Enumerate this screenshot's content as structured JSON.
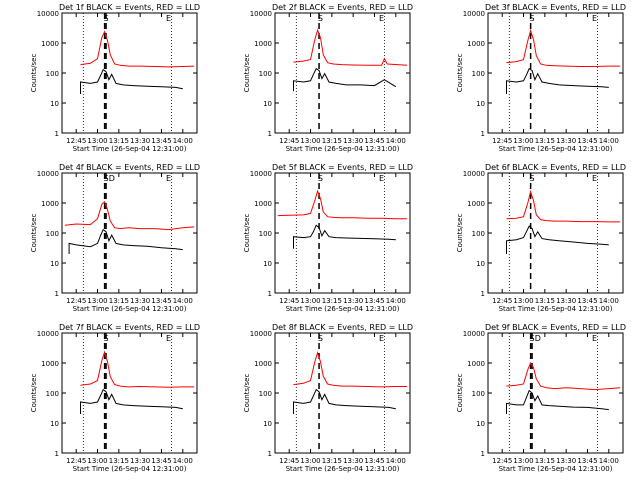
{
  "figure": {
    "common": {
      "ylabel": "Counts/sec",
      "xlabel": "Start Time (26-Sep-04 12:31:00)",
      "title_suffix": "BLACK = Events, RED = LLD"
    }
  },
  "colors": {
    "events": "#000000",
    "lld": "#ff0000",
    "axes": "#000000"
  },
  "chart_data": [
    {
      "type": "line",
      "title": "Det 1f BLACK = Events, RED = LLD",
      "xlabel": "Start Time (26-Sep-04 12:31:00)",
      "ylabel": "Counts/sec",
      "yscale": "log",
      "ylim": [
        1,
        10000
      ],
      "xlim": [
        "12:35",
        "14:10"
      ],
      "xticks": [
        "12:45",
        "13:00",
        "13:15",
        "13:30",
        "13:45",
        "14:00"
      ],
      "yticks": [
        "1",
        "10",
        "100",
        "1000",
        "10000"
      ],
      "dotted_lines_x": [
        "12:50",
        "13:52"
      ],
      "dashed_lines_x": [
        "13:05",
        "13:06"
      ],
      "markers": [
        "S",
        "E"
      ],
      "series": [
        {
          "key": "lld",
          "x": [
            "12:48",
            "12:55",
            "13:00",
            "13:03",
            "13:05",
            "13:07",
            "13:09",
            "13:12",
            "13:16",
            "13:22",
            "13:30",
            "13:40",
            "13:50",
            "14:00",
            "14:08"
          ],
          "y": [
            190,
            210,
            300,
            1500,
            2400,
            1200,
            400,
            200,
            180,
            170,
            170,
            165,
            160,
            165,
            170
          ]
        },
        {
          "key": "events",
          "x": [
            "12:48",
            "12:48",
            "12:55",
            "13:00",
            "13:02",
            "13:04",
            "13:06",
            "13:08",
            "13:10",
            "13:13",
            "13:18",
            "13:25",
            "13:35",
            "13:45",
            "13:55",
            "14:00"
          ],
          "y": [
            20,
            50,
            45,
            50,
            80,
            130,
            110,
            60,
            90,
            45,
            40,
            38,
            36,
            35,
            33,
            30
          ]
        }
      ]
    },
    {
      "type": "line",
      "title": "Det 2f BLACK = Events, RED = LLD",
      "xlabel": "Start Time (26-Sep-04 12:31:00)",
      "ylabel": "Counts/sec",
      "yscale": "log",
      "ylim": [
        1,
        10000
      ],
      "xlim": [
        "12:35",
        "14:10"
      ],
      "xticks": [
        "12:45",
        "13:00",
        "13:15",
        "13:30",
        "13:45",
        "14:00"
      ],
      "yticks": [
        "1",
        "10",
        "100",
        "1000",
        "10000"
      ],
      "dotted_lines_x": [
        "12:50",
        "13:52"
      ],
      "dashed_lines_x": [
        "13:06"
      ],
      "markers": [
        "S",
        "E"
      ],
      "series": [
        {
          "key": "lld",
          "x": [
            "12:48",
            "12:55",
            "13:00",
            "13:03",
            "13:05",
            "13:07",
            "13:09",
            "13:12",
            "13:16",
            "13:22",
            "13:30",
            "13:40",
            "13:50",
            "13:52",
            "13:54",
            "14:08"
          ],
          "y": [
            230,
            250,
            280,
            1300,
            2700,
            1500,
            400,
            220,
            200,
            190,
            185,
            180,
            180,
            300,
            200,
            180
          ]
        },
        {
          "key": "events",
          "x": [
            "12:48",
            "12:48",
            "12:55",
            "13:00",
            "13:02",
            "13:04",
            "13:06",
            "13:08",
            "13:10",
            "13:13",
            "13:18",
            "13:25",
            "13:35",
            "13:45",
            "13:52",
            "14:00"
          ],
          "y": [
            25,
            55,
            50,
            55,
            90,
            140,
            120,
            65,
            95,
            50,
            45,
            40,
            40,
            38,
            60,
            35
          ]
        }
      ]
    },
    {
      "type": "line",
      "title": "Det 3f BLACK = Events, RED = LLD",
      "xlabel": "Start Time (26-Sep-04 12:31:00)",
      "ylabel": "Counts/sec",
      "yscale": "log",
      "ylim": [
        1,
        10000
      ],
      "xlim": [
        "12:35",
        "14:10"
      ],
      "xticks": [
        "12:45",
        "13:00",
        "13:15",
        "13:30",
        "13:45",
        "14:00"
      ],
      "yticks": [
        "1",
        "10",
        "100",
        "1000",
        "10000"
      ],
      "dotted_lines_x": [
        "12:50",
        "13:52"
      ],
      "dashed_lines_x": [
        "13:05"
      ],
      "markers": [
        "S",
        "E"
      ],
      "series": [
        {
          "key": "lld",
          "x": [
            "12:48",
            "12:55",
            "13:00",
            "13:03",
            "13:05",
            "13:07",
            "13:09",
            "13:12",
            "13:16",
            "13:22",
            "13:30",
            "13:40",
            "13:50",
            "14:00",
            "14:08"
          ],
          "y": [
            220,
            240,
            280,
            1200,
            2600,
            1300,
            380,
            200,
            180,
            175,
            170,
            165,
            165,
            170,
            170
          ]
        },
        {
          "key": "events",
          "x": [
            "12:48",
            "12:48",
            "12:55",
            "13:00",
            "13:02",
            "13:04",
            "13:06",
            "13:08",
            "13:10",
            "13:13",
            "13:18",
            "13:25",
            "13:35",
            "13:45",
            "13:55",
            "14:00"
          ],
          "y": [
            20,
            55,
            50,
            55,
            85,
            140,
            120,
            60,
            95,
            50,
            45,
            40,
            38,
            36,
            35,
            33
          ]
        }
      ]
    },
    {
      "type": "line",
      "title": "Det 4f BLACK = Events, RED = LLD",
      "xlabel": "Start Time (26-Sep-04 12:31:00)",
      "ylabel": "Counts/sec",
      "yscale": "log",
      "ylim": [
        1,
        10000
      ],
      "xlim": [
        "12:35",
        "14:10"
      ],
      "xticks": [
        "12:45",
        "13:00",
        "13:15",
        "13:30",
        "13:45",
        "14:00"
      ],
      "yticks": [
        "1",
        "10",
        "100",
        "1000",
        "10000"
      ],
      "dotted_lines_x": [
        "12:50",
        "13:52"
      ],
      "dashed_lines_x": [
        "13:05",
        "13:06"
      ],
      "markers": [
        "S",
        "E",
        "D"
      ],
      "series": [
        {
          "key": "lld",
          "x": [
            "12:37",
            "12:45",
            "12:55",
            "13:00",
            "13:03",
            "13:05",
            "13:07",
            "13:09",
            "13:12",
            "13:16",
            "13:22",
            "13:30",
            "13:40",
            "13:50",
            "14:00",
            "14:08"
          ],
          "y": [
            180,
            200,
            190,
            300,
            900,
            1100,
            600,
            250,
            150,
            140,
            150,
            140,
            140,
            130,
            150,
            160
          ]
        },
        {
          "key": "events",
          "x": [
            "12:40",
            "12:40",
            "12:45",
            "12:55",
            "13:00",
            "13:02",
            "13:04",
            "13:06",
            "13:08",
            "13:10",
            "13:13",
            "13:18",
            "13:25",
            "13:35",
            "13:45",
            "13:55",
            "14:00"
          ],
          "y": [
            20,
            45,
            40,
            35,
            45,
            80,
            130,
            110,
            55,
            85,
            45,
            40,
            38,
            36,
            32,
            30,
            28
          ]
        }
      ]
    },
    {
      "type": "line",
      "title": "Det 5f BLACK = Events, RED = LLD",
      "xlabel": "Start Time (26-Sep-04 12:31:00)",
      "ylabel": "Counts/sec",
      "yscale": "log",
      "ylim": [
        1,
        10000
      ],
      "xlim": [
        "12:35",
        "14:10"
      ],
      "xticks": [
        "12:45",
        "13:00",
        "13:15",
        "13:30",
        "13:45",
        "14:00"
      ],
      "yticks": [
        "1",
        "10",
        "100",
        "1000",
        "10000"
      ],
      "dotted_lines_x": [
        "12:50",
        "13:52"
      ],
      "dashed_lines_x": [
        "13:06"
      ],
      "markers": [
        "S",
        "E"
      ],
      "series": [
        {
          "key": "lld",
          "x": [
            "12:37",
            "12:45",
            "12:55",
            "13:00",
            "13:03",
            "13:05",
            "13:07",
            "13:09",
            "13:12",
            "13:16",
            "13:22",
            "13:30",
            "13:40",
            "13:50",
            "14:00",
            "14:08"
          ],
          "y": [
            380,
            390,
            400,
            450,
            1200,
            2500,
            1400,
            500,
            350,
            330,
            320,
            320,
            310,
            310,
            300,
            300
          ]
        },
        {
          "key": "events",
          "x": [
            "12:48",
            "12:48",
            "12:55",
            "13:00",
            "13:02",
            "13:04",
            "13:06",
            "13:08",
            "13:10",
            "13:13",
            "13:18",
            "13:25",
            "13:35",
            "13:45",
            "13:55",
            "14:00"
          ],
          "y": [
            30,
            75,
            70,
            75,
            110,
            180,
            150,
            80,
            120,
            75,
            70,
            68,
            66,
            64,
            62,
            60
          ]
        }
      ]
    },
    {
      "type": "line",
      "title": "Det 6f BLACK = Events, RED = LLD",
      "xlabel": "Start Time (26-Sep-04 12:31:00)",
      "ylabel": "Counts/sec",
      "yscale": "log",
      "ylim": [
        1,
        10000
      ],
      "xlim": [
        "12:35",
        "14:10"
      ],
      "xticks": [
        "12:45",
        "13:00",
        "13:15",
        "13:30",
        "13:45",
        "14:00"
      ],
      "yticks": [
        "1",
        "10",
        "100",
        "1000",
        "10000"
      ],
      "dotted_lines_x": [
        "12:50",
        "13:52"
      ],
      "dashed_lines_x": [
        "13:05"
      ],
      "markers": [
        "S",
        "E"
      ],
      "series": [
        {
          "key": "lld",
          "x": [
            "12:48",
            "12:55",
            "13:00",
            "13:03",
            "13:05",
            "13:07",
            "13:09",
            "13:12",
            "13:16",
            "13:22",
            "13:30",
            "13:40",
            "13:50",
            "14:00",
            "14:08"
          ],
          "y": [
            300,
            310,
            350,
            1000,
            2400,
            1200,
            400,
            280,
            260,
            250,
            250,
            240,
            240,
            235,
            235
          ]
        },
        {
          "key": "events",
          "x": [
            "12:48",
            "12:48",
            "12:55",
            "13:00",
            "13:02",
            "13:04",
            "13:06",
            "13:08",
            "13:10",
            "13:13",
            "13:18",
            "13:25",
            "13:35",
            "13:45",
            "13:55",
            "14:00"
          ],
          "y": [
            20,
            55,
            60,
            70,
            110,
            170,
            140,
            75,
            110,
            65,
            60,
            55,
            50,
            45,
            42,
            40
          ]
        }
      ]
    },
    {
      "type": "line",
      "title": "Det 7f BLACK = Events, RED = LLD",
      "xlabel": "Start Time (26-Sep-04 12:31:00)",
      "ylabel": "Counts/sec",
      "yscale": "log",
      "ylim": [
        1,
        10000
      ],
      "xlim": [
        "12:35",
        "14:10"
      ],
      "xticks": [
        "12:45",
        "13:00",
        "13:15",
        "13:30",
        "13:45",
        "14:00"
      ],
      "yticks": [
        "1",
        "10",
        "100",
        "1000",
        "10000"
      ],
      "dotted_lines_x": [
        "12:50",
        "13:52"
      ],
      "dashed_lines_x": [
        "13:05",
        "13:06"
      ],
      "markers": [
        "S",
        "E"
      ],
      "series": [
        {
          "key": "lld",
          "x": [
            "12:48",
            "12:55",
            "13:00",
            "13:03",
            "13:05",
            "13:07",
            "13:09",
            "13:12",
            "13:16",
            "13:22",
            "13:30",
            "13:40",
            "13:50",
            "14:00",
            "14:08"
          ],
          "y": [
            180,
            200,
            260,
            1200,
            2300,
            1100,
            350,
            190,
            170,
            160,
            165,
            160,
            155,
            160,
            160
          ]
        },
        {
          "key": "events",
          "x": [
            "12:48",
            "12:48",
            "12:55",
            "13:00",
            "13:02",
            "13:04",
            "13:06",
            "13:08",
            "13:10",
            "13:13",
            "13:18",
            "13:25",
            "13:35",
            "13:45",
            "13:55",
            "14:00"
          ],
          "y": [
            20,
            50,
            45,
            50,
            80,
            130,
            110,
            60,
            90,
            45,
            40,
            38,
            36,
            35,
            33,
            30
          ]
        }
      ]
    },
    {
      "type": "line",
      "title": "Det 8f BLACK = Events, RED = LLD",
      "xlabel": "Start Time (26-Sep-04 12:31:00)",
      "ylabel": "Counts/sec",
      "yscale": "log",
      "ylim": [
        1,
        10000
      ],
      "xlim": [
        "12:35",
        "14:10"
      ],
      "xticks": [
        "12:45",
        "13:00",
        "13:15",
        "13:30",
        "13:45",
        "14:00"
      ],
      "yticks": [
        "1",
        "10",
        "100",
        "1000",
        "10000"
      ],
      "dotted_lines_x": [
        "12:50",
        "13:52"
      ],
      "dashed_lines_x": [
        "13:06"
      ],
      "markers": [
        "S",
        "E"
      ],
      "series": [
        {
          "key": "lld",
          "x": [
            "12:48",
            "12:55",
            "13:00",
            "13:03",
            "13:05",
            "13:07",
            "13:09",
            "13:12",
            "13:16",
            "13:22",
            "13:30",
            "13:40",
            "13:50",
            "14:00",
            "14:08"
          ],
          "y": [
            190,
            210,
            260,
            1100,
            2200,
            1100,
            360,
            200,
            180,
            170,
            170,
            165,
            160,
            165,
            165
          ]
        },
        {
          "key": "events",
          "x": [
            "12:48",
            "12:48",
            "12:55",
            "13:00",
            "13:02",
            "13:04",
            "13:06",
            "13:08",
            "13:10",
            "13:13",
            "13:18",
            "13:25",
            "13:35",
            "13:45",
            "13:55",
            "14:00"
          ],
          "y": [
            20,
            50,
            45,
            50,
            80,
            130,
            110,
            60,
            90,
            45,
            40,
            38,
            36,
            35,
            33,
            30
          ]
        }
      ]
    },
    {
      "type": "line",
      "title": "Det 9f BLACK = Events, RED = LLD",
      "xlabel": "Start Time (26-Sep-04 12:31:00)",
      "ylabel": "Counts/sec",
      "yscale": "log",
      "ylim": [
        1,
        10000
      ],
      "xlim": [
        "12:35",
        "14:10"
      ],
      "xticks": [
        "12:45",
        "13:00",
        "13:15",
        "13:30",
        "13:45",
        "14:00"
      ],
      "yticks": [
        "1",
        "10",
        "100",
        "1000",
        "10000"
      ],
      "dotted_lines_x": [
        "12:50",
        "13:52"
      ],
      "dashed_lines_x": [
        "13:05",
        "13:06"
      ],
      "markers": [
        "S",
        "E",
        "D"
      ],
      "series": [
        {
          "key": "lld",
          "x": [
            "12:48",
            "12:55",
            "13:00",
            "13:03",
            "13:05",
            "13:07",
            "13:09",
            "13:12",
            "13:16",
            "13:22",
            "13:30",
            "13:40",
            "13:50",
            "14:00",
            "14:08"
          ],
          "y": [
            170,
            180,
            200,
            600,
            1000,
            700,
            300,
            170,
            150,
            140,
            150,
            140,
            130,
            140,
            150
          ]
        },
        {
          "key": "events",
          "x": [
            "12:48",
            "12:48",
            "12:55",
            "13:00",
            "13:02",
            "13:04",
            "13:06",
            "13:08",
            "13:10",
            "13:13",
            "13:18",
            "13:25",
            "13:35",
            "13:45",
            "13:55",
            "14:00"
          ],
          "y": [
            20,
            45,
            40,
            40,
            70,
            120,
            100,
            55,
            80,
            40,
            38,
            36,
            34,
            33,
            30,
            28
          ]
        }
      ]
    }
  ]
}
